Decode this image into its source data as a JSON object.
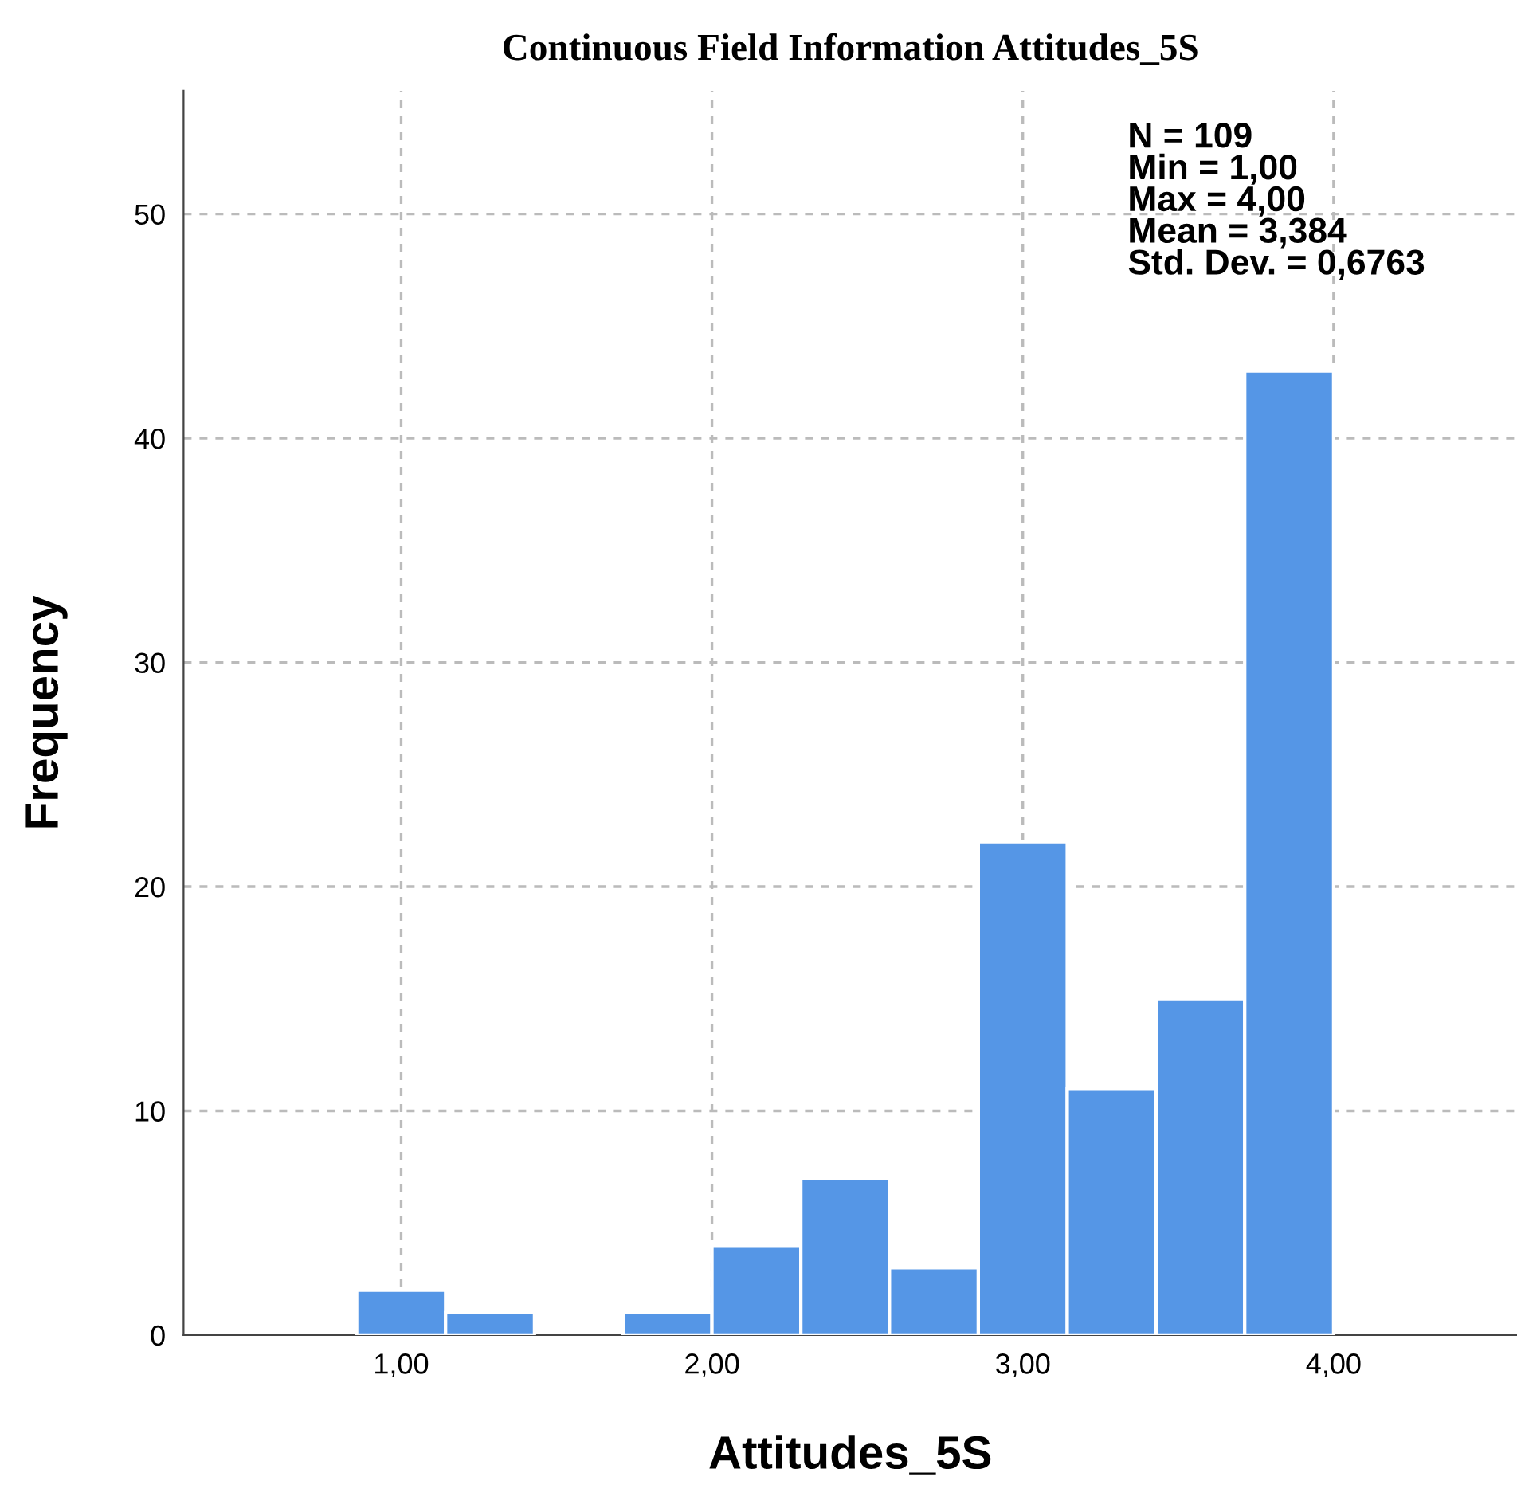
{
  "chart_data": {
    "type": "histogram",
    "title": "Continuous Field Information Attitudes_5S",
    "xlabel": "Attitudes_5S",
    "ylabel": "Frequency",
    "bins": [
      0.857,
      1.143,
      1.429,
      1.714,
      2.0,
      2.286,
      2.571,
      2.857,
      3.143,
      3.429,
      3.714,
      4.0
    ],
    "values": [
      2,
      1,
      0,
      1,
      4,
      7,
      3,
      22,
      11,
      15,
      43
    ],
    "color": "#5596e6",
    "xlim": [
      0.3,
      4.59
    ],
    "ylim": [
      0,
      55.5
    ],
    "xticks": [
      {
        "value": 1,
        "label": "1,00"
      },
      {
        "value": 2,
        "label": "2,00"
      },
      {
        "value": 3,
        "label": "3,00"
      },
      {
        "value": 4,
        "label": "4,00"
      }
    ],
    "yticks": [
      0,
      10,
      20,
      30,
      40,
      50
    ],
    "grid": true,
    "annotations": [
      "N = 109\nMin = 1,00\nMax = 4,00\nMean = 3,384\nStd. Dev. = 0,6763"
    ]
  }
}
